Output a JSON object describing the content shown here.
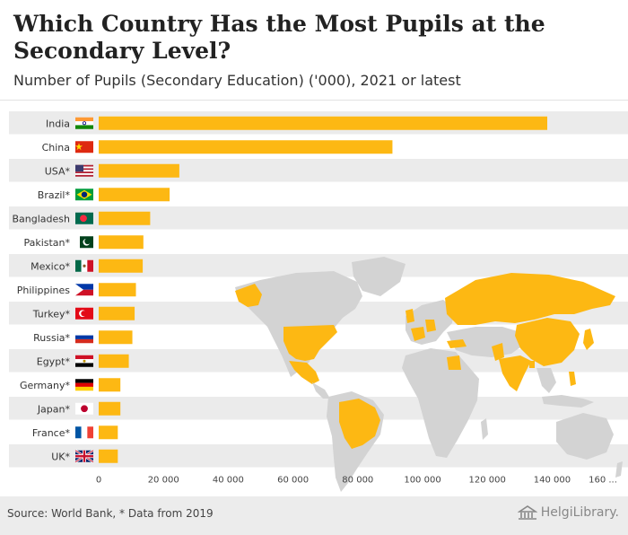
{
  "title": "Which Country Has the Most Pupils at the Secondary Level?",
  "subtitle": "Number of Pupils (Secondary Education) ('000), 2021 or latest",
  "source": "Source: World Bank, * Data from 2019",
  "logo_text": "HelgiLibrary.",
  "colors": {
    "bar": "#FDB813",
    "row_band": "#EBEBEB",
    "map_land": "#D3D3D3",
    "map_highlight": "#FDB813",
    "text": "#333333"
  },
  "chart_data": {
    "type": "bar",
    "orientation": "horizontal",
    "categories": [
      "India",
      "China",
      "USA*",
      "Brazil*",
      "Bangladesh",
      "Pakistan*",
      "Mexico*",
      "Philippines",
      "Turkey*",
      "Russia*",
      "Egypt*",
      "Germany*",
      "Japan*",
      "France*",
      "UK*"
    ],
    "flags": [
      "india-flag",
      "china-flag",
      "usa-flag",
      "brazil-flag",
      "bangladesh-flag",
      "pakistan-flag",
      "mexico-flag",
      "philippines-flag",
      "turkey-flag",
      "russia-flag",
      "egypt-flag",
      "germany-flag",
      "japan-flag",
      "france-flag",
      "uk-flag"
    ],
    "values": [
      138500,
      90700,
      24900,
      21900,
      15900,
      13800,
      13600,
      11500,
      11100,
      10400,
      9300,
      6700,
      6700,
      5900,
      5900
    ],
    "xlim": [
      0,
      160000
    ],
    "xticks": [
      0,
      20000,
      40000,
      60000,
      80000,
      100000,
      120000,
      140000
    ],
    "xtick_labels": [
      "0",
      "20 000",
      "40 000",
      "60 000",
      "80 000",
      "100 000",
      "120 000",
      "140 000"
    ],
    "last_tick_label": "160 ...",
    "grid": false,
    "background_image": "world-map"
  }
}
